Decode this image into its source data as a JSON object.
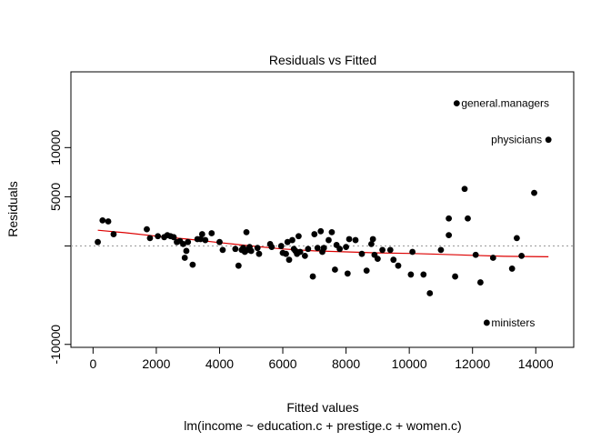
{
  "chart_data": {
    "type": "scatter",
    "title": "Residuals vs Fitted",
    "xlabel": "Fitted values",
    "subtitle": "lm(income ~ education.c + prestige.c + women.c)",
    "ylabel": "Residuals",
    "xlim": [
      -700,
      15200
    ],
    "ylim": [
      -10300,
      17700
    ],
    "x_ticks": [
      0,
      2000,
      4000,
      6000,
      8000,
      10000,
      12000,
      14000
    ],
    "y_ticks": [
      -10000,
      0,
      5000,
      10000
    ],
    "x_tick_labels": [
      "0",
      "2000",
      "4000",
      "6000",
      "8000",
      "10000",
      "12000",
      "14000"
    ],
    "y_tick_labels": [
      "-10000",
      "",
      "5000",
      "10000"
    ],
    "reference_line_y": 0,
    "grid": false,
    "colors": {
      "points": "#000000",
      "smoother": "#dd0000",
      "reference": "#999999"
    },
    "points": [
      [
        150,
        400
      ],
      [
        300,
        2600
      ],
      [
        480,
        2500
      ],
      [
        650,
        1200
      ],
      [
        1700,
        1700
      ],
      [
        1800,
        800
      ],
      [
        2050,
        1000
      ],
      [
        2250,
        900
      ],
      [
        2350,
        1100
      ],
      [
        2450,
        1000
      ],
      [
        2550,
        900
      ],
      [
        2650,
        400
      ],
      [
        2750,
        500
      ],
      [
        2850,
        200
      ],
      [
        2900,
        -1200
      ],
      [
        2950,
        -500
      ],
      [
        3000,
        400
      ],
      [
        3150,
        -1900
      ],
      [
        3300,
        700
      ],
      [
        3400,
        700
      ],
      [
        3450,
        1200
      ],
      [
        3550,
        600
      ],
      [
        3750,
        1300
      ],
      [
        4000,
        400
      ],
      [
        4100,
        -400
      ],
      [
        4500,
        -300
      ],
      [
        4600,
        -2000
      ],
      [
        4700,
        -400
      ],
      [
        4750,
        -200
      ],
      [
        4800,
        -600
      ],
      [
        4850,
        1400
      ],
      [
        4900,
        -400
      ],
      [
        4950,
        -100
      ],
      [
        5000,
        -500
      ],
      [
        5200,
        -200
      ],
      [
        5250,
        -800
      ],
      [
        5600,
        200
      ],
      [
        5650,
        -100
      ],
      [
        5950,
        0
      ],
      [
        6000,
        -700
      ],
      [
        6100,
        -800
      ],
      [
        6150,
        400
      ],
      [
        6200,
        -1400
      ],
      [
        6300,
        600
      ],
      [
        6350,
        -300
      ],
      [
        6400,
        -500
      ],
      [
        6450,
        -800
      ],
      [
        6500,
        1000
      ],
      [
        6550,
        -600
      ],
      [
        6700,
        -1000
      ],
      [
        6800,
        -300
      ],
      [
        6950,
        -3100
      ],
      [
        7000,
        1200
      ],
      [
        7100,
        -200
      ],
      [
        7200,
        1500
      ],
      [
        7250,
        -600
      ],
      [
        7300,
        -200
      ],
      [
        7450,
        600
      ],
      [
        7550,
        1400
      ],
      [
        7650,
        -2400
      ],
      [
        7700,
        100
      ],
      [
        7800,
        -300
      ],
      [
        8000,
        -100
      ],
      [
        8050,
        -2800
      ],
      [
        8100,
        700
      ],
      [
        8300,
        600
      ],
      [
        8500,
        -800
      ],
      [
        8650,
        -2500
      ],
      [
        8800,
        200
      ],
      [
        8850,
        700
      ],
      [
        8900,
        -900
      ],
      [
        9000,
        -1300
      ],
      [
        9150,
        -400
      ],
      [
        9400,
        -400
      ],
      [
        9500,
        -1400
      ],
      [
        9650,
        -2000
      ],
      [
        10050,
        -2900
      ],
      [
        10100,
        -600
      ],
      [
        10450,
        -2900
      ],
      [
        10650,
        -4800
      ],
      [
        11000,
        -400
      ],
      [
        11250,
        1100
      ],
      [
        11250,
        2800
      ],
      [
        11450,
        -3100
      ],
      [
        11750,
        5800
      ],
      [
        11850,
        2800
      ],
      [
        12100,
        -900
      ],
      [
        12250,
        -3700
      ],
      [
        12450,
        -7800
      ],
      [
        12650,
        -1200
      ],
      [
        13250,
        -2300
      ],
      [
        13400,
        800
      ],
      [
        13550,
        -1000
      ],
      [
        13950,
        5400
      ],
      [
        11500,
        14500
      ],
      [
        14400,
        10800
      ]
    ],
    "labeled_points": [
      {
        "x": 11500,
        "y": 14500,
        "label": "general.managers"
      },
      {
        "x": 14400,
        "y": 10800,
        "label": "physicians"
      },
      {
        "x": 12450,
        "y": -7800,
        "label": "ministers"
      }
    ],
    "smoother": [
      [
        150,
        1600
      ],
      [
        1000,
        1350
      ],
      [
        2000,
        1000
      ],
      [
        3000,
        700
      ],
      [
        4000,
        350
      ],
      [
        5000,
        0
      ],
      [
        6000,
        -300
      ],
      [
        7000,
        -500
      ],
      [
        8000,
        -600
      ],
      [
        9000,
        -700
      ],
      [
        10000,
        -750
      ],
      [
        11000,
        -850
      ],
      [
        12000,
        -950
      ],
      [
        13000,
        -1050
      ],
      [
        14400,
        -1100
      ]
    ]
  }
}
